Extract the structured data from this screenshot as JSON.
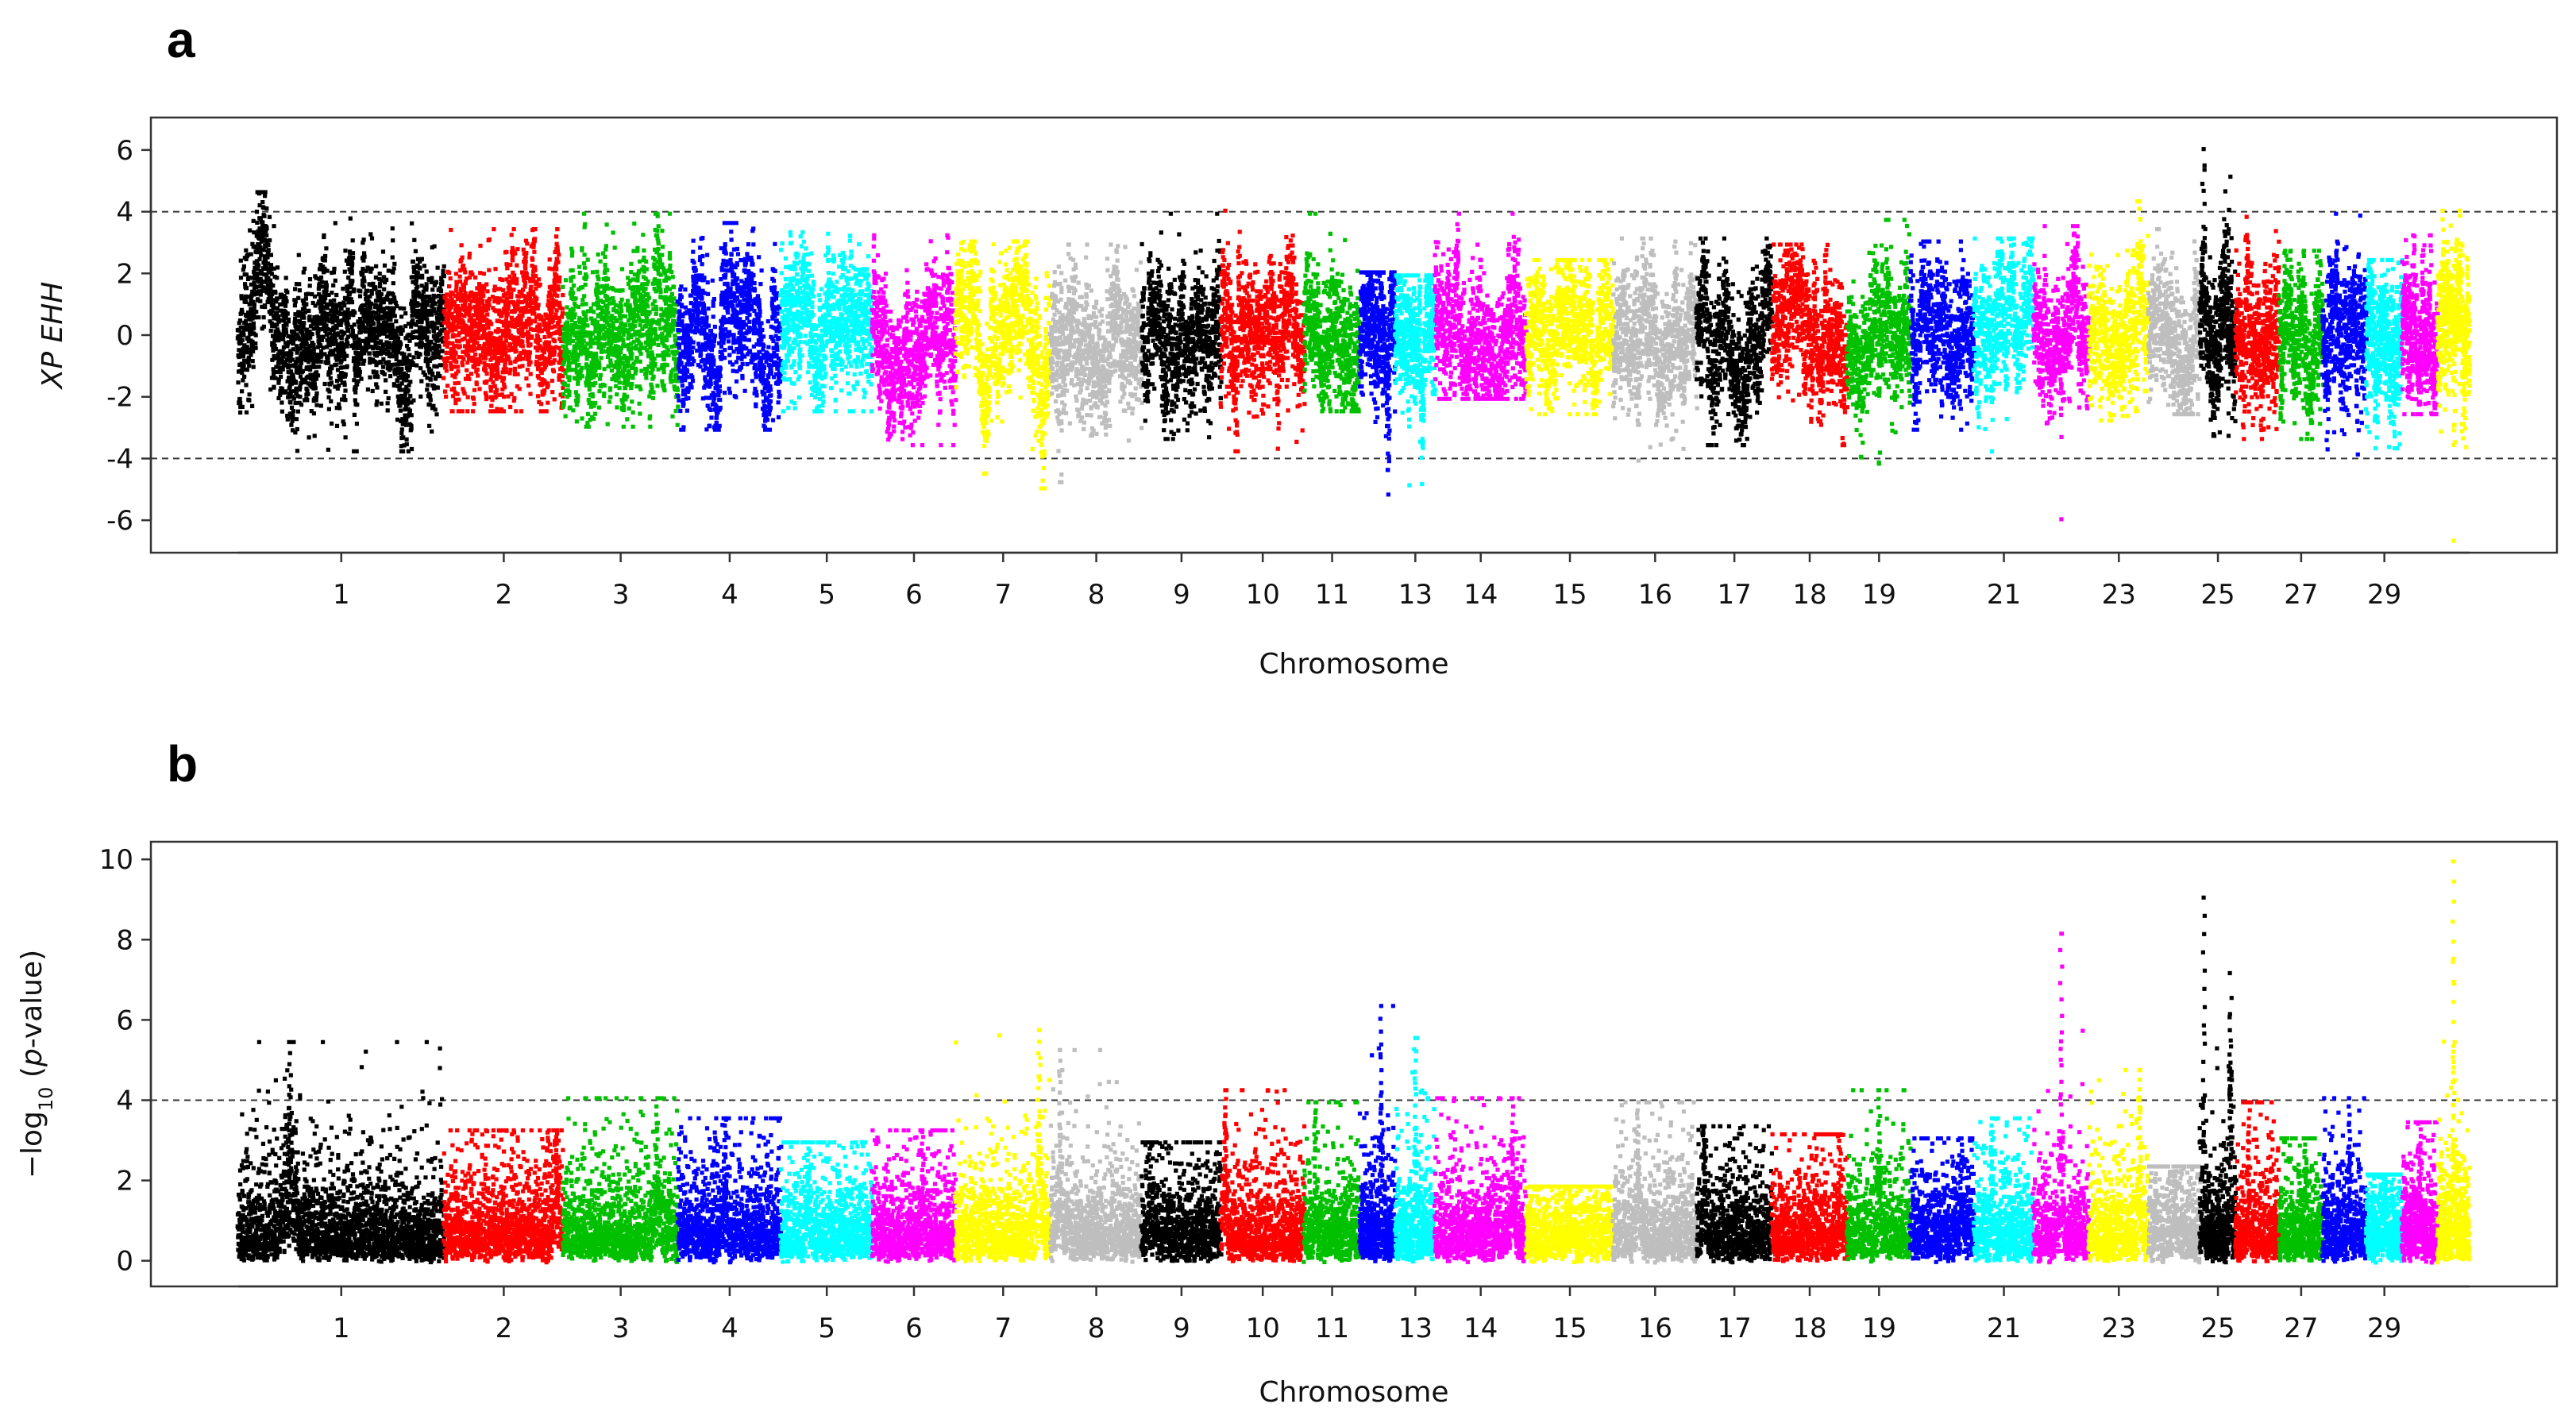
{
  "chart_data": [
    {
      "panel": "a",
      "type": "scatter",
      "subtype": "manhattan",
      "xlabel": "Chromosome",
      "ylabel": "XP EHH",
      "ylim": [
        -7,
        7
      ],
      "yticks": [
        "-6",
        "-4",
        "-2",
        "0",
        "2",
        "4",
        "6"
      ],
      "threshold_lines": [
        4,
        -4
      ],
      "xtick_labels": [
        "1",
        "2",
        "3",
        "4",
        "5",
        "6",
        "7",
        "8",
        "9",
        "10",
        "11",
        "13",
        "14",
        "15",
        "16",
        "17",
        "18",
        "19",
        "21",
        "23",
        "25",
        "27",
        "29"
      ],
      "series": [
        {
          "chr": 1,
          "color": "#000000",
          "min": -3.7,
          "max": 4.7,
          "peak_pos": 0.1,
          "trough_pos": 0.8
        },
        {
          "chr": 2,
          "color": "#ff0000",
          "min": -2.4,
          "max": 3.5,
          "peak_pos": 0.95,
          "trough_pos": 0.5
        },
        {
          "chr": 3,
          "color": "#00c000",
          "min": -2.9,
          "max": 4.0,
          "peak_pos": 0.82,
          "trough_pos": 0.2
        },
        {
          "chr": 4,
          "color": "#0000ff",
          "min": -3.0,
          "max": 3.7,
          "peak_pos": 0.45,
          "trough_pos": 0.05
        },
        {
          "chr": 5,
          "color": "#00ffff",
          "min": -2.4,
          "max": 3.4,
          "peak_pos": 0.1,
          "trough_pos": 0.9
        },
        {
          "chr": 6,
          "color": "#ff00ff",
          "min": -3.5,
          "max": 3.3,
          "peak_pos": 0.9,
          "trough_pos": 0.6
        },
        {
          "chr": 7,
          "color": "#ffff00",
          "min": -4.9,
          "max": 3.1,
          "peak_pos": 0.2,
          "trough_pos": 0.9
        },
        {
          "chr": 8,
          "color": "#bebebe",
          "min": -4.7,
          "max": 3.0,
          "peak_pos": 0.4,
          "trough_pos": 0.1
        },
        {
          "chr": 9,
          "color": "#000000",
          "min": -3.3,
          "max": 4.0,
          "peak_pos": 0.95,
          "trough_pos": 0.3
        },
        {
          "chr": 10,
          "color": "#ff0000",
          "min": -3.7,
          "max": 4.1,
          "peak_pos": 0.05,
          "trough_pos": 0.2
        },
        {
          "chr": 11,
          "color": "#00c000",
          "min": -2.4,
          "max": 4.0,
          "peak_pos": 0.2,
          "trough_pos": 0.7
        },
        {
          "chr": 12,
          "color": "#0000ff",
          "min": -5.1,
          "max": 2.1,
          "peak_pos": 0.3,
          "trough_pos": 0.8
        },
        {
          "chr": 13,
          "color": "#00ffff",
          "min": -4.8,
          "max": 2.0,
          "peak_pos": 0.5,
          "trough_pos": 0.35
        },
        {
          "chr": 14,
          "color": "#ff00ff",
          "min": -2.0,
          "max": 4.0,
          "peak_pos": 0.85,
          "trough_pos": 0.3
        },
        {
          "chr": 15,
          "color": "#ffff00",
          "min": -2.5,
          "max": 2.5,
          "peak_pos": 0.5,
          "trough_pos": 0.5
        },
        {
          "chr": 16,
          "color": "#bebebe",
          "min": -4.0,
          "max": 3.2,
          "peak_pos": 0.1,
          "trough_pos": 0.3
        },
        {
          "chr": 17,
          "color": "#000000",
          "min": -3.5,
          "max": 3.2,
          "peak_pos": 0.05,
          "trough_pos": 0.2
        },
        {
          "chr": 18,
          "color": "#ff0000",
          "min": -3.5,
          "max": 3.0,
          "peak_pos": 0.2,
          "trough_pos": 0.95
        },
        {
          "chr": 19,
          "color": "#00c000",
          "min": -4.1,
          "max": 3.8,
          "peak_pos": 0.9,
          "trough_pos": 0.5
        },
        {
          "chr": 20,
          "color": "#0000ff",
          "min": -3.0,
          "max": 3.1,
          "peak_pos": 0.2,
          "trough_pos": 0.1
        },
        {
          "chr": 21,
          "color": "#00ffff",
          "min": -3.7,
          "max": 3.2,
          "peak_pos": 0.6,
          "trough_pos": 0.3
        },
        {
          "chr": 22,
          "color": "#ff00ff",
          "min": -5.9,
          "max": 3.6,
          "peak_pos": 0.2,
          "trough_pos": 0.5
        },
        {
          "chr": 23,
          "color": "#ffff00",
          "min": -2.7,
          "max": 4.4,
          "peak_pos": 0.85,
          "trough_pos": 0.2
        },
        {
          "chr": 24,
          "color": "#bebebe",
          "min": -2.5,
          "max": 3.5,
          "peak_pos": 0.2,
          "trough_pos": 0.5
        },
        {
          "chr": 25,
          "color": "#000000",
          "min": -3.2,
          "max": 6.1,
          "peak_pos": 0.1,
          "trough_pos": 0.8,
          "second_peak": 5.2,
          "second_peak_pos": 0.85
        },
        {
          "chr": 26,
          "color": "#ff0000",
          "min": -3.3,
          "max": 3.9,
          "peak_pos": 0.25,
          "trough_pos": 0.6
        },
        {
          "chr": 27,
          "color": "#00c000",
          "min": -3.3,
          "max": 2.8,
          "peak_pos": 0.8,
          "trough_pos": 0.5
        },
        {
          "chr": 28,
          "color": "#0000ff",
          "min": -3.8,
          "max": 4.0,
          "peak_pos": 0.3,
          "trough_pos": 0.8
        },
        {
          "chr": 29,
          "color": "#00ffff",
          "min": -3.6,
          "max": 2.5,
          "peak_pos": 0.2,
          "trough_pos": 0.8
        },
        {
          "chr": 30,
          "color": "#ff00ff",
          "min": -2.5,
          "max": 3.3,
          "peak_pos": 0.8,
          "trough_pos": 0.3
        },
        {
          "chr": 31,
          "color": "#ffff00",
          "min": -6.6,
          "max": 4.1,
          "peak_pos": 0.15,
          "trough_pos": 0.5
        }
      ]
    },
    {
      "panel": "b",
      "type": "scatter",
      "subtype": "manhattan",
      "xlabel": "Chromosome",
      "ylabel": "−log10 (p-value)",
      "ylim": [
        -0.6,
        10.4
      ],
      "yticks": [
        "0",
        "2",
        "4",
        "6",
        "8",
        "10"
      ],
      "threshold_lines": [
        4
      ],
      "xtick_labels": [
        "1",
        "2",
        "3",
        "4",
        "5",
        "6",
        "7",
        "8",
        "9",
        "10",
        "11",
        "13",
        "14",
        "15",
        "16",
        "17",
        "18",
        "19",
        "21",
        "23",
        "25",
        "27",
        "29"
      ],
      "series": [
        {
          "chr": 1,
          "color": "#000000",
          "max": 5.5,
          "peak_pos": 0.25
        },
        {
          "chr": 2,
          "color": "#ff0000",
          "max": 3.3,
          "peak_pos": 0.95
        },
        {
          "chr": 3,
          "color": "#00c000",
          "max": 4.1,
          "peak_pos": 0.82
        },
        {
          "chr": 4,
          "color": "#0000ff",
          "max": 3.6,
          "peak_pos": 0.45
        },
        {
          "chr": 5,
          "color": "#00ffff",
          "max": 3.0,
          "peak_pos": 0.3
        },
        {
          "chr": 6,
          "color": "#ff00ff",
          "max": 3.3,
          "peak_pos": 0.6
        },
        {
          "chr": 7,
          "color": "#ffff00",
          "max": 5.8,
          "peak_pos": 0.88
        },
        {
          "chr": 8,
          "color": "#bebebe",
          "max": 5.3,
          "peak_pos": 0.1
        },
        {
          "chr": 9,
          "color": "#000000",
          "max": 3.0,
          "peak_pos": 0.1
        },
        {
          "chr": 10,
          "color": "#ff0000",
          "max": 4.3,
          "peak_pos": 0.05
        },
        {
          "chr": 11,
          "color": "#00c000",
          "max": 4.0,
          "peak_pos": 0.2
        },
        {
          "chr": 12,
          "color": "#0000ff",
          "max": 6.4,
          "peak_pos": 0.6
        },
        {
          "chr": 13,
          "color": "#00ffff",
          "max": 5.6,
          "peak_pos": 0.5
        },
        {
          "chr": 14,
          "color": "#ff00ff",
          "max": 4.1,
          "peak_pos": 0.85
        },
        {
          "chr": 15,
          "color": "#ffff00",
          "max": 1.9,
          "peak_pos": 0.5
        },
        {
          "chr": 16,
          "color": "#bebebe",
          "max": 4.0,
          "peak_pos": 0.3
        },
        {
          "chr": 17,
          "color": "#000000",
          "max": 3.4,
          "peak_pos": 0.1
        },
        {
          "chr": 18,
          "color": "#ff0000",
          "max": 3.2,
          "peak_pos": 0.9
        },
        {
          "chr": 19,
          "color": "#00c000",
          "max": 4.3,
          "peak_pos": 0.5
        },
        {
          "chr": 20,
          "color": "#0000ff",
          "max": 3.1,
          "peak_pos": 0.8
        },
        {
          "chr": 21,
          "color": "#00ffff",
          "max": 3.6,
          "peak_pos": 0.3
        },
        {
          "chr": 22,
          "color": "#ff00ff",
          "max": 8.2,
          "peak_pos": 0.5
        },
        {
          "chr": 23,
          "color": "#ffff00",
          "max": 4.8,
          "peak_pos": 0.85
        },
        {
          "chr": 24,
          "color": "#bebebe",
          "max": 2.4,
          "peak_pos": 0.5
        },
        {
          "chr": 25,
          "color": "#000000",
          "max": 9.1,
          "peak_pos": 0.1,
          "second_peak": 6.6,
          "second_peak_pos": 0.85
        },
        {
          "chr": 26,
          "color": "#ff0000",
          "max": 4.0,
          "peak_pos": 0.3
        },
        {
          "chr": 27,
          "color": "#00c000",
          "max": 3.1,
          "peak_pos": 0.6
        },
        {
          "chr": 28,
          "color": "#0000ff",
          "max": 4.1,
          "peak_pos": 0.6
        },
        {
          "chr": 29,
          "color": "#00ffff",
          "max": 2.2,
          "peak_pos": 0.5
        },
        {
          "chr": 30,
          "color": "#ff00ff",
          "max": 3.5,
          "peak_pos": 0.5
        },
        {
          "chr": 31,
          "color": "#ffff00",
          "max": 10.0,
          "peak_pos": 0.5
        }
      ]
    }
  ]
}
